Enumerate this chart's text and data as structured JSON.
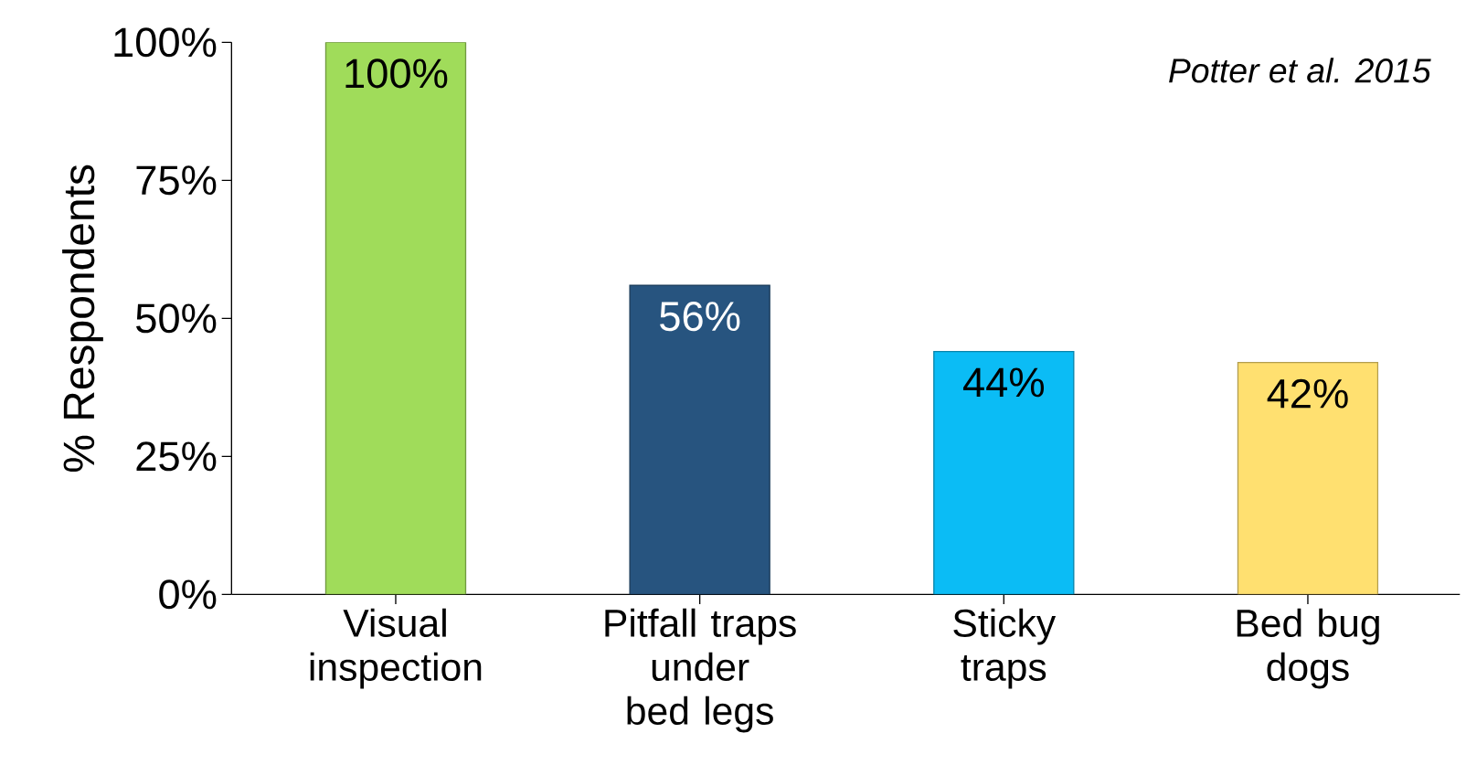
{
  "chart_data": {
    "type": "bar",
    "ylabel": "% Respondents",
    "categories": [
      "Visual inspection",
      "Pitfall traps under bed legs",
      "Sticky traps",
      "Bed bug dogs"
    ],
    "values": [
      100,
      56,
      44,
      42
    ],
    "colors": [
      "#a0dc5a",
      "#27547f",
      "#0bbcf5",
      "#ffe070"
    ],
    "value_labels": [
      "100%",
      "56%",
      "44%",
      "42%"
    ],
    "ylim": [
      0,
      100
    ],
    "yticks": [
      {
        "value": 0,
        "label": "0%"
      },
      {
        "value": 25,
        "label": "25%"
      },
      {
        "value": 50,
        "label": "50%"
      },
      {
        "value": 75,
        "label": "75%"
      },
      {
        "value": 100,
        "label": "100%"
      }
    ],
    "annotations": [
      "Potter et al. 2015"
    ]
  }
}
